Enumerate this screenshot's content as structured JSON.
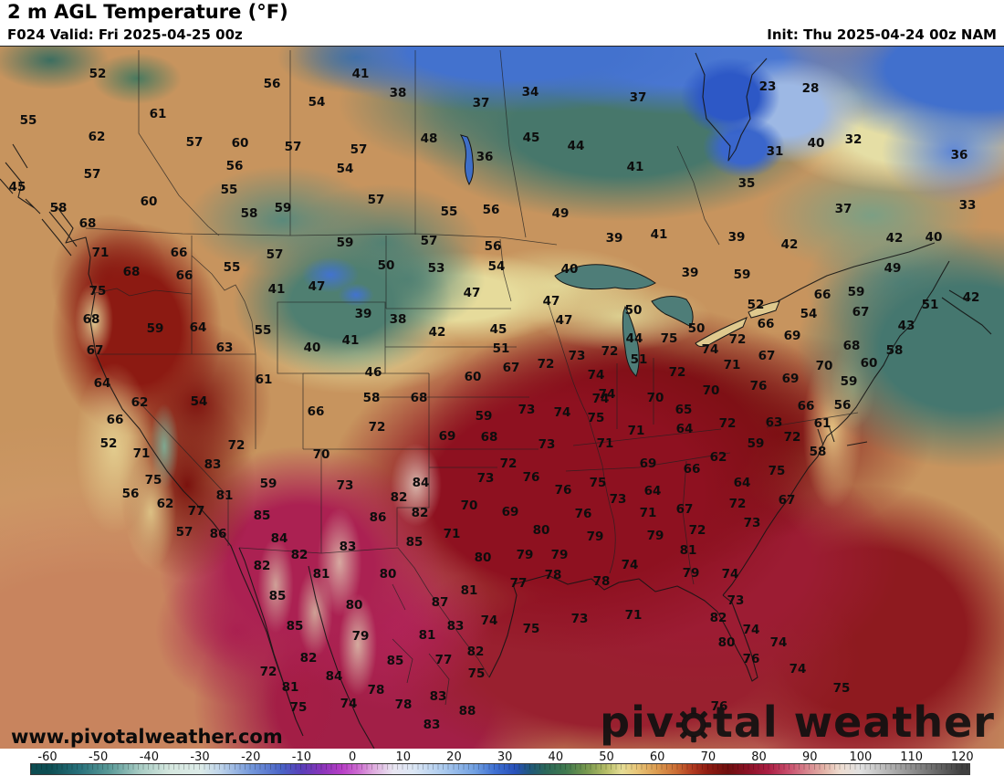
{
  "header": {
    "title": "2 m AGL Temperature (°F)",
    "valid": "F024 Valid: Fri 2025-04-25 00z",
    "init": "Init: Thu 2025-04-24 00z NAM"
  },
  "watermark": {
    "site_url": "www.pivotalweather.com",
    "brand_pre": "piv",
    "brand_post": "tal weather",
    "gear_icon_color": "#141414"
  },
  "colorbar": {
    "unit": "°F",
    "ticks": [
      -60,
      -50,
      -40,
      -30,
      -20,
      -10,
      0,
      10,
      20,
      30,
      40,
      50,
      60,
      70,
      80,
      90,
      100,
      110,
      120
    ],
    "stops": [
      [
        -60,
        "#0d4d52"
      ],
      [
        -54,
        "#27707a"
      ],
      [
        -48,
        "#5a9a98"
      ],
      [
        -42,
        "#a8ccc4"
      ],
      [
        -36,
        "#d5e7df"
      ],
      [
        -30,
        "#dcebe8"
      ],
      [
        -26,
        "#bdd3ea"
      ],
      [
        -20,
        "#7397da"
      ],
      [
        -14,
        "#4a63c6"
      ],
      [
        -10,
        "#5a3eb8"
      ],
      [
        -6,
        "#8a35ba"
      ],
      [
        -2,
        "#b83fc6"
      ],
      [
        1,
        "#cc6ad0"
      ],
      [
        4,
        "#dfaade"
      ],
      [
        8,
        "#e9e6f2"
      ],
      [
        12,
        "#dce7f5"
      ],
      [
        18,
        "#abcaee"
      ],
      [
        24,
        "#72a1e2"
      ],
      [
        28,
        "#3f70d2"
      ],
      [
        32,
        "#2851ba"
      ],
      [
        35,
        "#20587a"
      ],
      [
        38,
        "#2b675a"
      ],
      [
        42,
        "#40794f"
      ],
      [
        46,
        "#75974e"
      ],
      [
        50,
        "#b6bd67"
      ],
      [
        53,
        "#e5dd96"
      ],
      [
        56,
        "#e8c679"
      ],
      [
        60,
        "#dc9b50"
      ],
      [
        64,
        "#ca6a33"
      ],
      [
        67,
        "#b13a20"
      ],
      [
        70,
        "#8f1c12"
      ],
      [
        74,
        "#6f0f0f"
      ],
      [
        78,
        "#8c1226"
      ],
      [
        82,
        "#ab1f44"
      ],
      [
        86,
        "#c94f6d"
      ],
      [
        90,
        "#d98c92"
      ],
      [
        93,
        "#e3b4a8"
      ],
      [
        96,
        "#eedcd0"
      ],
      [
        100,
        "#e1e1e1"
      ],
      [
        105,
        "#b9b9b9"
      ],
      [
        110,
        "#919191"
      ],
      [
        115,
        "#696969"
      ],
      [
        120,
        "#404040"
      ]
    ]
  },
  "map": {
    "field": "2 m AGL Temperature",
    "unit": "°F",
    "labels": [
      [
        52,
        107,
        81
      ],
      [
        55,
        31,
        132
      ],
      [
        61,
        173,
        125
      ],
      [
        62,
        106,
        150
      ],
      [
        57,
        213,
        156
      ],
      [
        60,
        263,
        157
      ],
      [
        56,
        257,
        182
      ],
      [
        57,
        101,
        191
      ],
      [
        55,
        251,
        208
      ],
      [
        45,
        19,
        205
      ],
      [
        60,
        163,
        221
      ],
      [
        58,
        64,
        228
      ],
      [
        68,
        96,
        245
      ],
      [
        58,
        273,
        234
      ],
      [
        56,
        298,
        92
      ],
      [
        41,
        395,
        81
      ],
      [
        38,
        436,
        102
      ],
      [
        54,
        347,
        112
      ],
      [
        37,
        527,
        113
      ],
      [
        57,
        321,
        161
      ],
      [
        57,
        393,
        164
      ],
      [
        48,
        470,
        152
      ],
      [
        36,
        531,
        172
      ],
      [
        54,
        378,
        185
      ],
      [
        57,
        412,
        219
      ],
      [
        59,
        310,
        228
      ],
      [
        55,
        492,
        232
      ],
      [
        56,
        538,
        230
      ],
      [
        34,
        581,
        101
      ],
      [
        37,
        699,
        107
      ],
      [
        45,
        582,
        151
      ],
      [
        44,
        631,
        160
      ],
      [
        41,
        696,
        183
      ],
      [
        35,
        818,
        201
      ],
      [
        49,
        614,
        234
      ],
      [
        23,
        841,
        95
      ],
      [
        28,
        888,
        97
      ],
      [
        40,
        894,
        157
      ],
      [
        32,
        935,
        153
      ],
      [
        31,
        849,
        166
      ],
      [
        36,
        1051,
        170
      ],
      [
        37,
        924,
        229
      ],
      [
        33,
        1060,
        225
      ],
      [
        71,
        110,
        277
      ],
      [
        66,
        196,
        277
      ],
      [
        55,
        254,
        293
      ],
      [
        68,
        144,
        298
      ],
      [
        66,
        202,
        302
      ],
      [
        75,
        107,
        319
      ],
      [
        68,
        100,
        350
      ],
      [
        59,
        170,
        360
      ],
      [
        64,
        217,
        359
      ],
      [
        63,
        246,
        381
      ],
      [
        67,
        104,
        384
      ],
      [
        64,
        112,
        420
      ],
      [
        59,
        378,
        266
      ],
      [
        57,
        301,
        279
      ],
      [
        57,
        470,
        264
      ],
      [
        56,
        540,
        270
      ],
      [
        50,
        423,
        291
      ],
      [
        53,
        478,
        294
      ],
      [
        54,
        544,
        292
      ],
      [
        41,
        303,
        317
      ],
      [
        47,
        347,
        314
      ],
      [
        47,
        517,
        321
      ],
      [
        39,
        398,
        344
      ],
      [
        38,
        436,
        350
      ],
      [
        55,
        288,
        362
      ],
      [
        42,
        479,
        364
      ],
      [
        45,
        546,
        361
      ],
      [
        41,
        384,
        373
      ],
      [
        40,
        342,
        381
      ],
      [
        46,
        409,
        408
      ],
      [
        61,
        289,
        416
      ],
      [
        60,
        518,
        413
      ],
      [
        39,
        673,
        261
      ],
      [
        41,
        722,
        257
      ],
      [
        39,
        807,
        260
      ],
      [
        40,
        624,
        295
      ],
      [
        39,
        756,
        299
      ],
      [
        59,
        813,
        301
      ],
      [
        47,
        604,
        330
      ],
      [
        50,
        694,
        340
      ],
      [
        47,
        618,
        351
      ],
      [
        50,
        763,
        360
      ],
      [
        44,
        695,
        371
      ],
      [
        75,
        733,
        371
      ],
      [
        72,
        808,
        372
      ],
      [
        74,
        778,
        383
      ],
      [
        71,
        802,
        400
      ],
      [
        51,
        549,
        382
      ],
      [
        67,
        560,
        403
      ],
      [
        72,
        668,
        385
      ],
      [
        73,
        632,
        390
      ],
      [
        72,
        598,
        399
      ],
      [
        51,
        700,
        394
      ],
      [
        74,
        653,
        411
      ],
      [
        72,
        742,
        408
      ],
      [
        70,
        779,
        428
      ],
      [
        74,
        665,
        432
      ],
      [
        42,
        865,
        268
      ],
      [
        42,
        980,
        261
      ],
      [
        40,
        1023,
        260
      ],
      [
        49,
        978,
        294
      ],
      [
        66,
        901,
        323
      ],
      [
        59,
        938,
        320
      ],
      [
        51,
        1019,
        334
      ],
      [
        42,
        1064,
        326
      ],
      [
        52,
        828,
        334
      ],
      [
        54,
        886,
        344
      ],
      [
        66,
        839,
        355
      ],
      [
        67,
        943,
        342
      ],
      [
        69,
        868,
        368
      ],
      [
        43,
        993,
        357
      ],
      [
        68,
        933,
        379
      ],
      [
        58,
        980,
        384
      ],
      [
        67,
        840,
        390
      ],
      [
        60,
        952,
        398
      ],
      [
        70,
        903,
        401
      ],
      [
        69,
        866,
        415
      ],
      [
        59,
        930,
        418
      ],
      [
        76,
        831,
        423
      ],
      [
        62,
        153,
        441
      ],
      [
        54,
        218,
        440
      ],
      [
        66,
        126,
        460
      ],
      [
        52,
        119,
        486
      ],
      [
        71,
        155,
        497
      ],
      [
        72,
        259,
        488
      ],
      [
        83,
        233,
        509
      ],
      [
        75,
        168,
        526
      ],
      [
        81,
        246,
        543
      ],
      [
        56,
        143,
        541
      ],
      [
        62,
        181,
        552
      ],
      [
        77,
        215,
        560
      ],
      [
        57,
        202,
        583
      ],
      [
        86,
        239,
        585
      ],
      [
        58,
        407,
        436
      ],
      [
        68,
        459,
        436
      ],
      [
        66,
        346,
        451
      ],
      [
        59,
        530,
        456
      ],
      [
        72,
        413,
        468
      ],
      [
        69,
        490,
        478
      ],
      [
        68,
        536,
        479
      ],
      [
        70,
        352,
        498
      ],
      [
        59,
        294,
        530
      ],
      [
        73,
        378,
        532
      ],
      [
        84,
        461,
        529
      ],
      [
        73,
        532,
        524
      ],
      [
        82,
        437,
        545
      ],
      [
        70,
        514,
        554
      ],
      [
        85,
        287,
        565
      ],
      [
        86,
        414,
        567
      ],
      [
        82,
        460,
        562
      ],
      [
        71,
        495,
        585
      ],
      [
        84,
        306,
        590
      ],
      [
        85,
        454,
        594
      ],
      [
        83,
        381,
        599
      ],
      [
        82,
        328,
        608
      ],
      [
        80,
        529,
        611
      ],
      [
        82,
        287,
        620
      ],
      [
        74,
        658,
        437
      ],
      [
        70,
        718,
        436
      ],
      [
        73,
        577,
        449
      ],
      [
        74,
        616,
        452
      ],
      [
        65,
        749,
        449
      ],
      [
        75,
        653,
        458
      ],
      [
        64,
        750,
        470
      ],
      [
        72,
        797,
        464
      ],
      [
        71,
        697,
        472
      ],
      [
        73,
        599,
        487
      ],
      [
        71,
        663,
        486
      ],
      [
        72,
        557,
        508
      ],
      [
        69,
        710,
        508
      ],
      [
        62,
        787,
        501
      ],
      [
        66,
        758,
        514
      ],
      [
        76,
        582,
        523
      ],
      [
        75,
        655,
        529
      ],
      [
        64,
        813,
        529
      ],
      [
        76,
        617,
        537
      ],
      [
        64,
        715,
        538
      ],
      [
        73,
        677,
        547
      ],
      [
        72,
        808,
        552
      ],
      [
        69,
        559,
        561
      ],
      [
        71,
        710,
        562
      ],
      [
        67,
        750,
        558
      ],
      [
        76,
        639,
        563
      ],
      [
        80,
        593,
        581
      ],
      [
        72,
        764,
        581
      ],
      [
        79,
        652,
        588
      ],
      [
        79,
        718,
        587
      ],
      [
        79,
        575,
        608
      ],
      [
        79,
        613,
        608
      ],
      [
        81,
        754,
        603
      ],
      [
        74,
        690,
        619
      ],
      [
        66,
        883,
        445
      ],
      [
        56,
        923,
        444
      ],
      [
        63,
        848,
        463
      ],
      [
        61,
        901,
        464
      ],
      [
        72,
        868,
        479
      ],
      [
        59,
        828,
        486
      ],
      [
        58,
        896,
        495
      ],
      [
        75,
        851,
        516
      ],
      [
        67,
        862,
        548
      ],
      [
        73,
        824,
        573
      ],
      [
        81,
        352,
        629
      ],
      [
        80,
        425,
        629
      ],
      [
        85,
        304,
        653
      ],
      [
        81,
        514,
        647
      ],
      [
        80,
        388,
        663
      ],
      [
        87,
        482,
        660
      ],
      [
        85,
        323,
        686
      ],
      [
        83,
        499,
        686
      ],
      [
        74,
        536,
        680
      ],
      [
        79,
        395,
        697
      ],
      [
        81,
        468,
        696
      ],
      [
        82,
        521,
        714
      ],
      [
        82,
        338,
        721
      ],
      [
        77,
        486,
        723
      ],
      [
        85,
        433,
        724
      ],
      [
        72,
        294,
        736
      ],
      [
        75,
        522,
        738
      ],
      [
        84,
        366,
        741
      ],
      [
        81,
        318,
        753
      ],
      [
        78,
        412,
        756
      ],
      [
        83,
        480,
        763
      ],
      [
        75,
        327,
        775
      ],
      [
        74,
        382,
        771
      ],
      [
        78,
        442,
        772
      ],
      [
        88,
        512,
        779
      ],
      [
        83,
        473,
        794
      ],
      [
        77,
        568,
        639
      ],
      [
        78,
        606,
        630
      ],
      [
        78,
        659,
        637
      ],
      [
        79,
        757,
        628
      ],
      [
        74,
        800,
        629
      ],
      [
        73,
        635,
        678
      ],
      [
        71,
        694,
        674
      ],
      [
        73,
        806,
        658
      ],
      [
        82,
        787,
        677
      ],
      [
        75,
        582,
        689
      ],
      [
        80,
        796,
        704
      ],
      [
        76,
        788,
        774
      ],
      [
        74,
        823,
        690
      ],
      [
        74,
        853,
        704
      ],
      [
        76,
        823,
        722
      ],
      [
        74,
        874,
        733
      ],
      [
        75,
        922,
        754
      ]
    ]
  }
}
